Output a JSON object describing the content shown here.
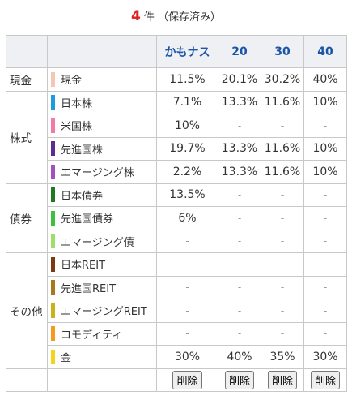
{
  "header": {
    "count": "4",
    "suffix": "件 （保存済み）"
  },
  "columns": [
    "かもナス",
    "20",
    "30",
    "40"
  ],
  "categories": {
    "cash": "現金",
    "stocks": "株式",
    "bonds": "債券",
    "other": "その他"
  },
  "rows": [
    {
      "label": "現金",
      "color": "#f7c6b3",
      "values": [
        "11.5%",
        "20.1%",
        "30.2%",
        "40%"
      ]
    },
    {
      "label": "日本株",
      "color": "#1e9be0",
      "values": [
        "7.1%",
        "13.3%",
        "11.6%",
        "10%"
      ]
    },
    {
      "label": "米国株",
      "color": "#f07aa8",
      "values": [
        "10%",
        "-",
        "-",
        "-"
      ]
    },
    {
      "label": "先進国株",
      "color": "#5b2d91",
      "values": [
        "19.7%",
        "13.3%",
        "11.6%",
        "10%"
      ]
    },
    {
      "label": "エマージング株",
      "color": "#a34fc4",
      "values": [
        "2.2%",
        "13.3%",
        "11.6%",
        "10%"
      ]
    },
    {
      "label": "日本債券",
      "color": "#1f7a1f",
      "values": [
        "13.5%",
        "-",
        "-",
        "-"
      ]
    },
    {
      "label": "先進国債券",
      "color": "#3fbf3f",
      "values": [
        "6%",
        "-",
        "-",
        "-"
      ]
    },
    {
      "label": "エマージング債",
      "color": "#9be06a",
      "values": [
        "-",
        "-",
        "-",
        "-"
      ]
    },
    {
      "label": "日本REIT",
      "color": "#7a3b12",
      "values": [
        "-",
        "-",
        "-",
        "-"
      ]
    },
    {
      "label": "先進国REIT",
      "color": "#a8781e",
      "values": [
        "-",
        "-",
        "-",
        "-"
      ]
    },
    {
      "label": "エマージングREIT",
      "color": "#c9b21a",
      "values": [
        "-",
        "-",
        "-",
        "-"
      ]
    },
    {
      "label": "コモディティ",
      "color": "#f59a1a",
      "values": [
        "-",
        "-",
        "-",
        "-"
      ]
    },
    {
      "label": "金",
      "color": "#f5d31a",
      "values": [
        "30%",
        "40%",
        "35%",
        "30%"
      ]
    }
  ],
  "delete_label": "削除"
}
